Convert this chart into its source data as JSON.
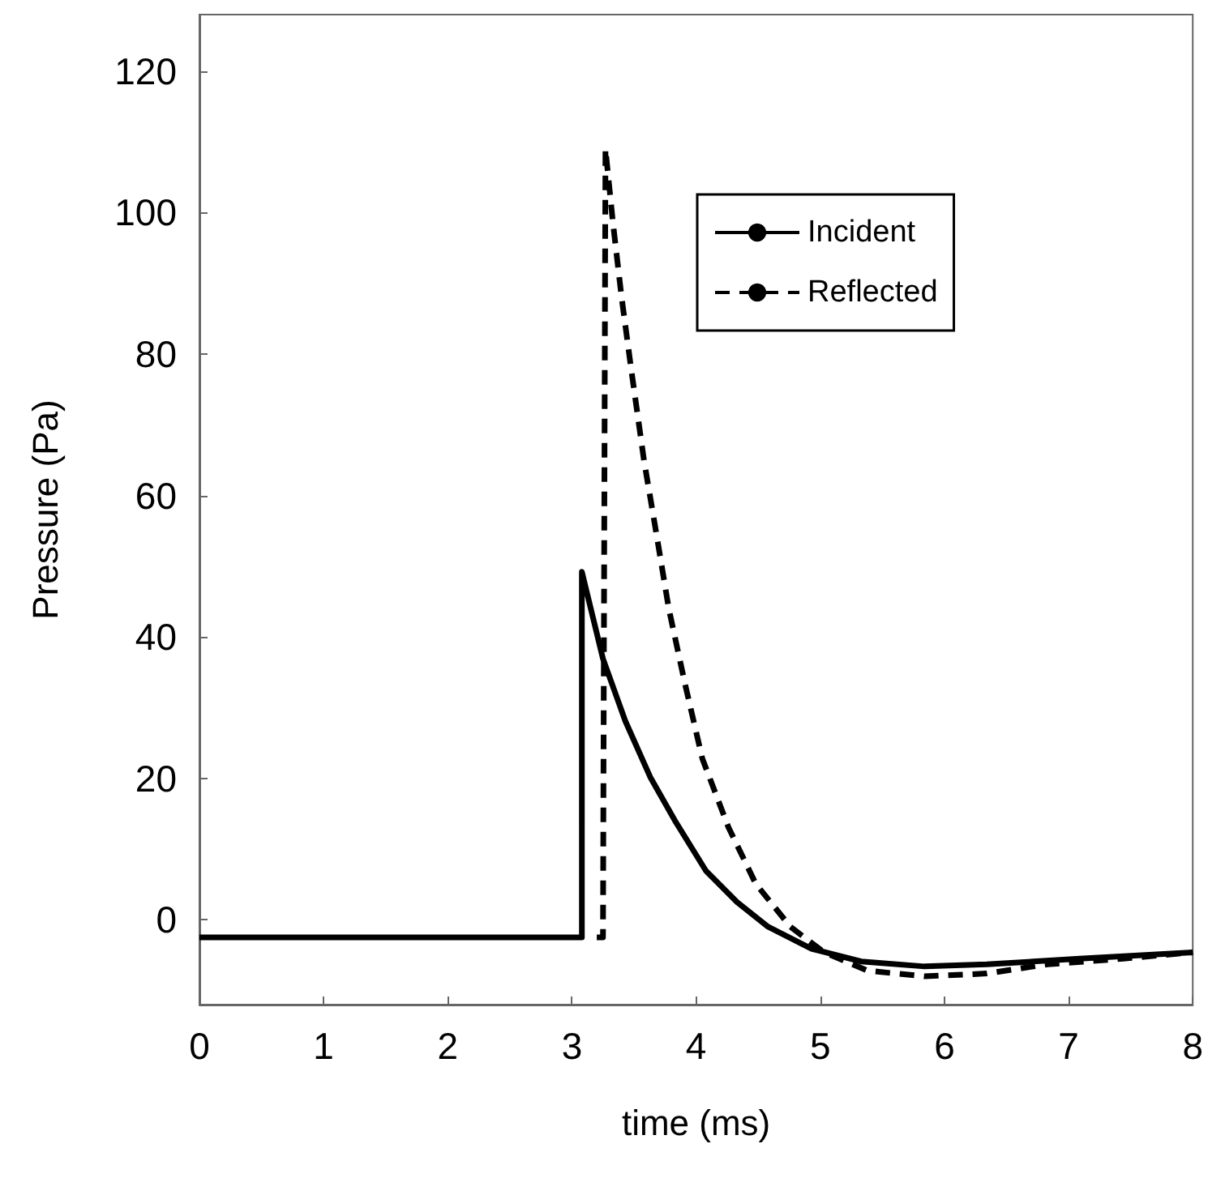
{
  "chart_data": {
    "type": "line",
    "xlabel": "time (ms)",
    "ylabel": "Pressure (Pa)",
    "xlim": [
      0,
      8
    ],
    "xticks": [
      0,
      1,
      2,
      3,
      4,
      5,
      6,
      7,
      8
    ],
    "ylim": [
      -12,
      128
    ],
    "yticks": [
      0,
      20,
      40,
      60,
      80,
      100,
      120
    ],
    "grid": false,
    "legend": "top right",
    "marker": "none",
    "series": [
      {
        "name": "Incident",
        "color": "#000000",
        "line_style": "solid",
        "x": [
          0,
          3.08,
          3.08,
          3.25,
          3.43,
          3.63,
          3.83,
          4.08,
          4.33,
          4.58,
          4.93,
          5.33,
          5.84,
          6.34,
          7.09,
          8
        ],
        "values": [
          -2.5,
          -2.5,
          49.2,
          36.9,
          28.1,
          20.2,
          14.0,
          6.9,
          2.5,
          -1.0,
          -4.1,
          -5.9,
          -6.6,
          -6.3,
          -5.5,
          -4.6
        ]
      },
      {
        "name": "Reflected",
        "color": "#000000",
        "line_style": "dashed",
        "x": [
          3.2,
          3.25,
          3.27,
          3.33,
          3.4,
          3.48,
          3.58,
          3.68,
          3.78,
          3.91,
          4.05,
          4.26,
          4.48,
          4.76,
          5.03,
          5.38,
          5.84,
          6.34,
          6.83,
          7.44,
          8
        ],
        "values": [
          -2.5,
          -2.5,
          109,
          98.6,
          88,
          77.5,
          65,
          54.6,
          44,
          33.4,
          22.8,
          13.1,
          5.1,
          -1.0,
          -4.6,
          -7.2,
          -8.0,
          -7.6,
          -6.3,
          -5.5,
          -4.6
        ]
      }
    ]
  }
}
